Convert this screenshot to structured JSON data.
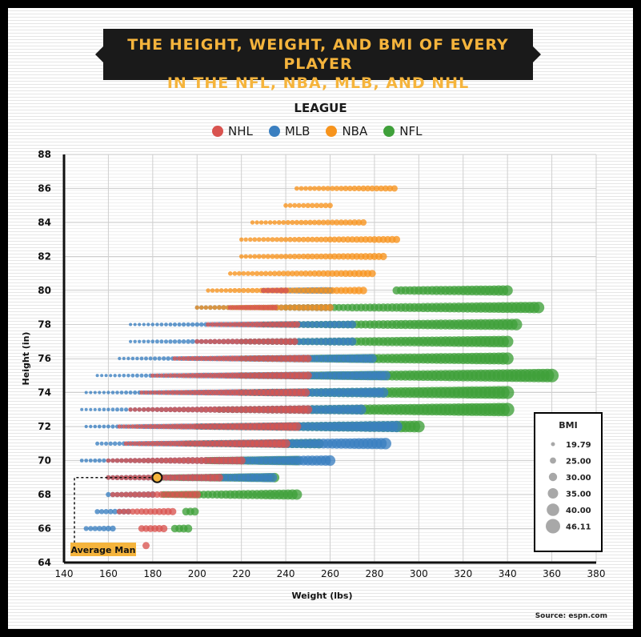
{
  "title": "THE HEIGHT, WEIGHT, AND BMI OF EVERY PLAYER\nIN THE NFL, NBA, MLB, AND NHL",
  "legend_title": "LEAGUE",
  "source": "Source: espn.com",
  "colors": {
    "NHL": "#d9534f",
    "MLB": "#3a7fc0",
    "NBA": "#f7941d",
    "NFL": "#3fa03a",
    "accent": "#f5b43c"
  },
  "chart_data": {
    "type": "scatter",
    "title": "THE HEIGHT, WEIGHT, AND BMI OF EVERY PLAYER IN THE NFL, NBA, MLB, AND NHL",
    "xlabel": "Weight (lbs)",
    "ylabel": "Height (in)",
    "xlim": [
      140,
      380
    ],
    "ylim": [
      64,
      88
    ],
    "xticks": [
      140,
      160,
      180,
      200,
      220,
      240,
      260,
      280,
      300,
      320,
      340,
      360,
      380
    ],
    "yticks": [
      64,
      66,
      68,
      70,
      72,
      74,
      76,
      78,
      80,
      82,
      84,
      86,
      88
    ],
    "grid": true,
    "legend_placement": "top-center",
    "size_encoding": "BMI",
    "bmi_legend": {
      "title": "BMI",
      "values": [
        "19.79",
        "25.00",
        "30.00",
        "35.00",
        "40.00",
        "46.11"
      ]
    },
    "series": [
      {
        "name": "NHL",
        "ranges": [
          [
            65,
            177,
            177
          ],
          [
            66,
            175,
            185
          ],
          [
            67,
            165,
            190
          ],
          [
            68,
            162,
            200
          ],
          [
            69,
            160,
            210
          ],
          [
            70,
            160,
            220
          ],
          [
            71,
            168,
            240
          ],
          [
            72,
            165,
            245
          ],
          [
            73,
            170,
            250
          ],
          [
            74,
            175,
            250
          ],
          [
            75,
            180,
            250
          ],
          [
            76,
            190,
            250
          ],
          [
            77,
            200,
            245
          ],
          [
            78,
            205,
            245
          ],
          [
            79,
            215,
            235
          ],
          [
            80,
            230,
            240
          ]
        ]
      },
      {
        "name": "MLB",
        "ranges": [
          [
            66,
            150,
            163
          ],
          [
            67,
            155,
            170
          ],
          [
            68,
            160,
            180
          ],
          [
            69,
            160,
            235
          ],
          [
            70,
            148,
            260
          ],
          [
            71,
            155,
            285
          ],
          [
            72,
            150,
            290
          ],
          [
            73,
            148,
            275
          ],
          [
            74,
            150,
            285
          ],
          [
            75,
            155,
            285
          ],
          [
            76,
            165,
            280
          ],
          [
            77,
            170,
            270
          ],
          [
            78,
            170,
            270
          ],
          [
            79,
            200,
            260
          ],
          [
            80,
            230,
            260
          ]
        ]
      },
      {
        "name": "NBA",
        "ranges": [
          [
            79,
            200,
            260
          ],
          [
            80,
            205,
            275
          ],
          [
            81,
            215,
            280
          ],
          [
            82,
            220,
            285
          ],
          [
            83,
            220,
            290
          ],
          [
            84,
            225,
            275
          ],
          [
            85,
            240,
            260
          ],
          [
            86,
            245,
            290
          ]
        ]
      },
      {
        "name": "NFL",
        "ranges": [
          [
            66,
            190,
            197
          ],
          [
            67,
            195,
            200
          ],
          [
            68,
            185,
            245
          ],
          [
            69,
            185,
            235
          ],
          [
            70,
            205,
            245
          ],
          [
            71,
            195,
            255
          ],
          [
            72,
            200,
            300
          ],
          [
            73,
            210,
            340
          ],
          [
            74,
            220,
            340
          ],
          [
            75,
            220,
            360
          ],
          [
            76,
            220,
            340
          ],
          [
            77,
            220,
            340
          ],
          [
            78,
            230,
            345
          ],
          [
            79,
            240,
            355
          ],
          [
            80,
            290,
            340
          ]
        ]
      }
    ],
    "annotations": [
      {
        "text": "Average Man",
        "x": 182,
        "y": 69
      }
    ]
  }
}
